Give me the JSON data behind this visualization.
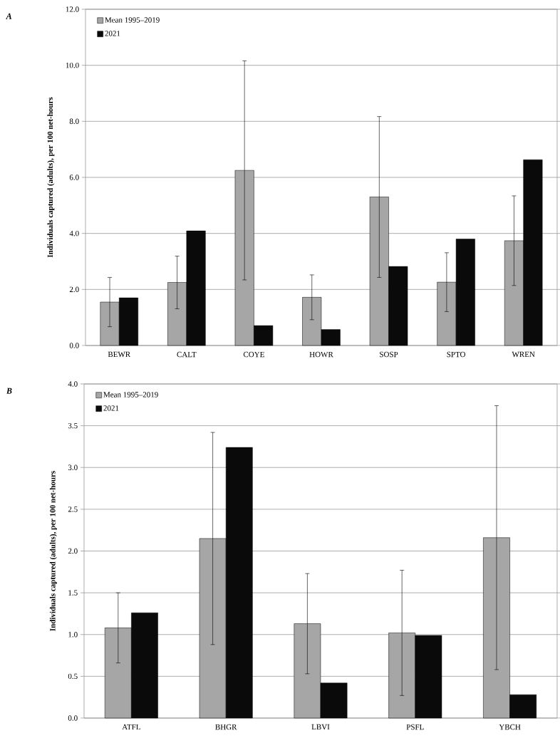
{
  "chart_data": [
    {
      "type": "bar",
      "annotations": [
        "A"
      ],
      "ylabel": "Individuals captured (adults), per 100 net-hours",
      "categories": [
        "BEWR",
        "CALT",
        "COYE",
        "HOWR",
        "SOSP",
        "SPTO",
        "WREN"
      ],
      "series": [
        {
          "name": "Mean 1995–2019",
          "color": "#a6a6a6",
          "values": [
            1.55,
            2.25,
            6.25,
            1.72,
            5.3,
            2.26,
            3.74
          ],
          "errors": [
            0.88,
            0.94,
            3.91,
            0.8,
            2.87,
            1.05,
            1.6
          ]
        },
        {
          "name": "2021",
          "color": "#0a0a0a",
          "values": [
            1.7,
            4.09,
            0.71,
            0.57,
            2.82,
            3.8,
            6.63
          ]
        }
      ],
      "ylim": [
        0,
        12
      ],
      "yticks": [
        {
          "value": 0,
          "label": "0.0"
        },
        {
          "value": 2,
          "label": "2.0"
        },
        {
          "value": 4,
          "label": "4.0"
        },
        {
          "value": 6,
          "label": "6.0"
        },
        {
          "value": 8,
          "label": "8.0"
        },
        {
          "value": 10,
          "label": "10.0"
        },
        {
          "value": 12,
          "label": "12.0"
        }
      ],
      "grid": "y",
      "legend": "top left"
    },
    {
      "type": "bar",
      "annotations": [
        "B"
      ],
      "ylabel": "Individuals captured (adults), per 100 net-hours",
      "categories": [
        "ATFL",
        "BHGR",
        "LBVI",
        "PSFL",
        "YBCH"
      ],
      "series": [
        {
          "name": "Mean 1995–2019",
          "color": "#a6a6a6",
          "values": [
            1.08,
            2.15,
            1.13,
            1.02,
            2.16
          ],
          "errors": [
            0.42,
            1.27,
            0.6,
            0.75,
            1.58
          ]
        },
        {
          "name": "2021",
          "color": "#0a0a0a",
          "values": [
            1.26,
            3.24,
            0.42,
            0.99,
            0.28
          ]
        }
      ],
      "ylim": [
        0,
        4
      ],
      "yticks": [
        {
          "value": 0,
          "label": "0.0"
        },
        {
          "value": 0.5,
          "label": "0.5"
        },
        {
          "value": 1,
          "label": "1.0"
        },
        {
          "value": 1.5,
          "label": "1.5"
        },
        {
          "value": 2,
          "label": "2.0"
        },
        {
          "value": 2.5,
          "label": "2.5"
        },
        {
          "value": 3,
          "label": "3.0"
        },
        {
          "value": 3.5,
          "label": "3.5"
        },
        {
          "value": 4,
          "label": "4.0"
        }
      ],
      "grid": "y",
      "legend": "top left"
    }
  ]
}
